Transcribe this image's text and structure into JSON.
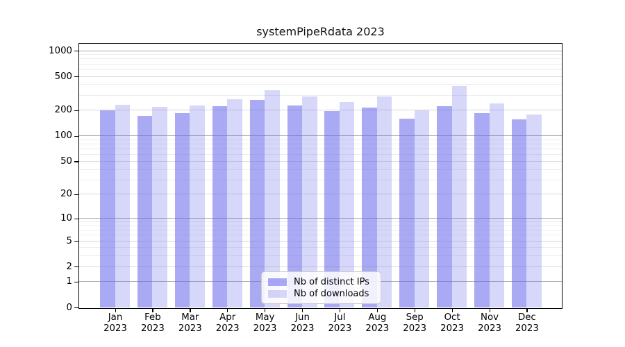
{
  "chart_data": {
    "type": "bar",
    "title": "systemPipeRdata 2023",
    "categories": [
      "Jan",
      "Feb",
      "Mar",
      "Apr",
      "May",
      "Jun",
      "Jul",
      "Aug",
      "Sep",
      "Oct",
      "Nov",
      "Dec"
    ],
    "year_label": "2023",
    "series": [
      {
        "name": "Nb of distinct IPs",
        "color": "rgba(99,99,235,0.55)",
        "solid_color": "#a9a9f3",
        "values": [
          200,
          172,
          184,
          225,
          266,
          226,
          196,
          215,
          160,
          225,
          186,
          157
        ]
      },
      {
        "name": "Nb of downloads",
        "color": "rgba(99,99,235,0.26)",
        "solid_color": "#d9d9f8",
        "values": [
          232,
          218,
          226,
          270,
          343,
          291,
          249,
          291,
          201,
          384,
          240,
          178
        ]
      }
    ],
    "y_ticks": [
      0,
      1,
      2,
      5,
      10,
      20,
      50,
      100,
      200,
      500,
      1000
    ],
    "y_scale": "log1p",
    "ylim": [
      0,
      1200
    ],
    "grid": true,
    "gridline_values_major": [
      1,
      10,
      100,
      1000
    ],
    "gridline_values_mid": [
      2,
      5,
      20,
      50,
      200,
      500
    ],
    "gridline_values_minor": [
      3,
      4,
      6,
      7,
      8,
      9,
      30,
      40,
      60,
      70,
      80,
      90,
      300,
      400,
      600,
      700,
      800,
      900
    ],
    "colors": {
      "grid_major": "#ababab",
      "grid_mid": "#d9d9d9",
      "grid_minor": "#ededed",
      "axis": "#000000",
      "background": "#ffffff"
    },
    "legend_position": "bottom-center"
  }
}
